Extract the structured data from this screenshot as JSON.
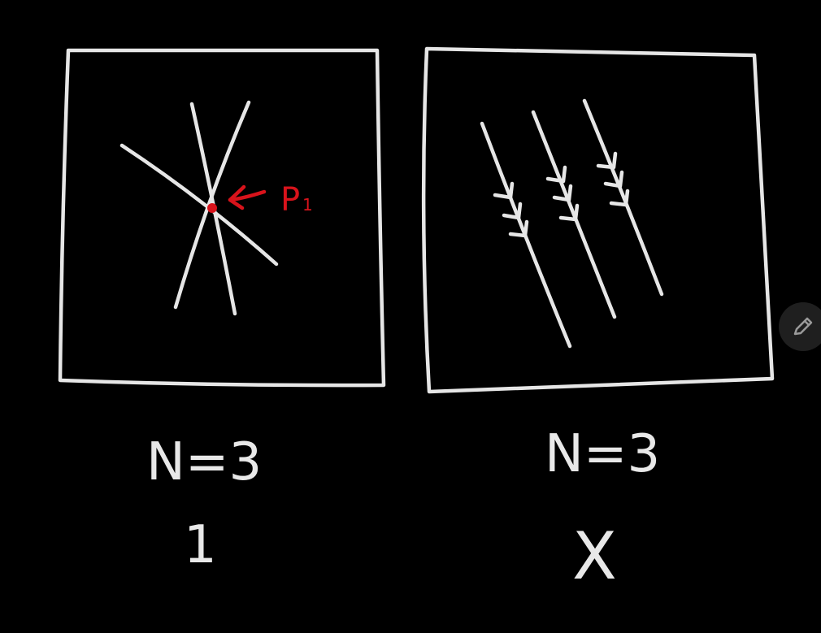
{
  "colors": {
    "background": "#000000",
    "chalk": "#e6e6e6",
    "highlight": "#d8131b",
    "tool_button": "#1f1f1f"
  },
  "left_panel": {
    "point_label": "P",
    "point_subscript": "1",
    "n_label": "N=3",
    "answer": "1"
  },
  "right_panel": {
    "n_label": "N=3",
    "answer": "X"
  },
  "toolbar": {
    "pen_icon": "pencil-icon"
  }
}
